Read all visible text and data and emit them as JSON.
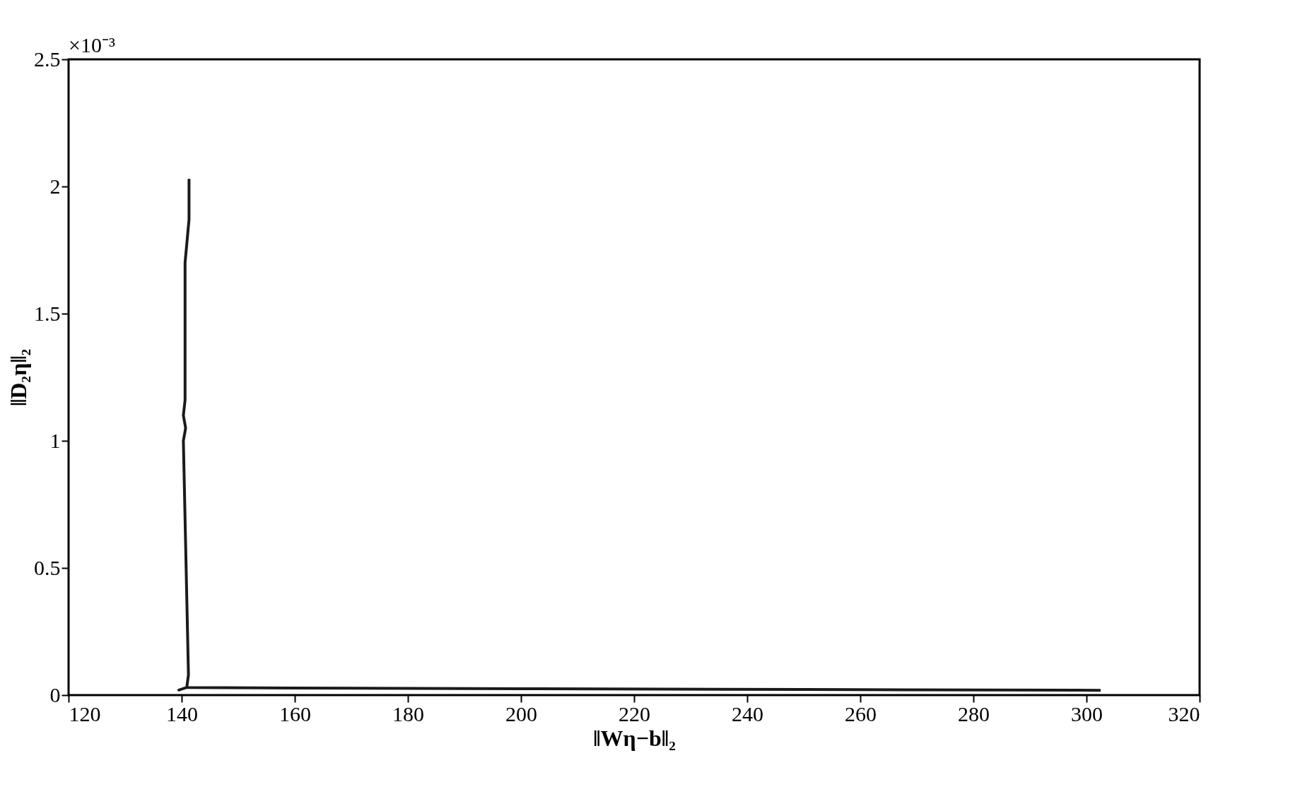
{
  "chart_data": {
    "type": "line",
    "xlabel": "‖Wη−b‖₂",
    "ylabel": "‖D₂η‖₂",
    "annotations": [
      "×10⁻³"
    ],
    "series": [
      {
        "color": "#1a1a1a",
        "x": [
          141.3,
          141.3,
          140.6,
          140.6,
          140.3,
          140.7,
          140.3,
          141.2,
          140.9,
          139.5,
          140.9,
          160,
          200,
          250,
          302.5
        ],
        "values": [
          2.03,
          1.87,
          1.7,
          1.16,
          1.1,
          1.05,
          1.0,
          0.08,
          0.03,
          0.02,
          0.03,
          0.028,
          0.025,
          0.022,
          0.019
        ]
      }
    ],
    "xlim": [
      120,
      320
    ],
    "xticks": [
      120,
      140,
      160,
      180,
      200,
      220,
      240,
      260,
      280,
      300,
      320
    ],
    "ylim": [
      0,
      2.5
    ],
    "yticks": [
      0,
      0.5,
      1,
      1.5,
      2,
      2.5
    ]
  }
}
